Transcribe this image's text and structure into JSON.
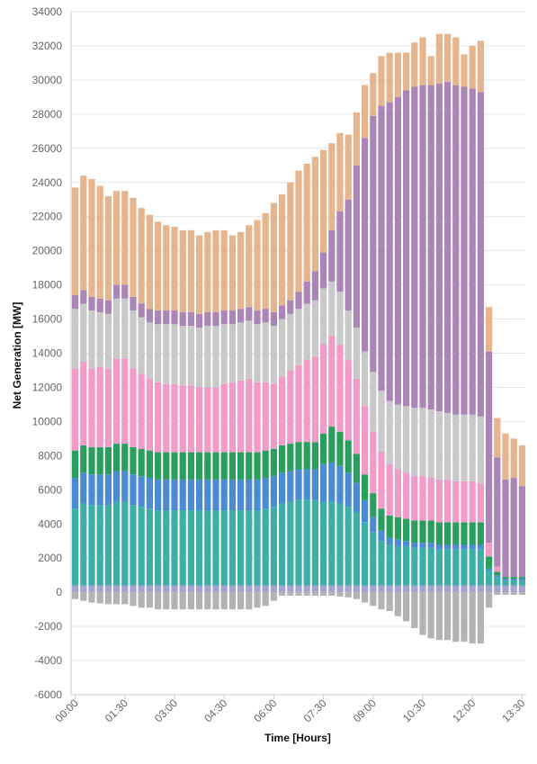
{
  "chart_data": {
    "type": "stacked_bar",
    "x_label": "Time [Hours]",
    "y_label": "Net Generation [MW]",
    "categories": [
      "00:00",
      null,
      null,
      null,
      null,
      null,
      "01:30",
      null,
      null,
      null,
      null,
      null,
      "03:00",
      null,
      null,
      null,
      null,
      null,
      "04:30",
      null,
      null,
      null,
      null,
      null,
      "06:00",
      null,
      null,
      null,
      null,
      null,
      "07:30",
      null,
      null,
      null,
      null,
      null,
      "09:00",
      null,
      null,
      null,
      null,
      null,
      "10:30",
      null,
      null,
      null,
      null,
      null,
      "12:00",
      null,
      null,
      null,
      null,
      null,
      "13:30"
    ],
    "ylim": [
      -6000,
      34000
    ],
    "yticks": [
      -6000,
      -4000,
      -2000,
      0,
      2000,
      4000,
      6000,
      8000,
      10000,
      12000,
      14000,
      16000,
      18000,
      20000,
      22000,
      24000,
      26000,
      28000,
      30000,
      32000,
      34000
    ],
    "grid": true,
    "series": [
      {
        "color": "#a6a2d4",
        "values": [
          400,
          400,
          400,
          400,
          400,
          400,
          400,
          400,
          400,
          400,
          400,
          400,
          400,
          400,
          400,
          400,
          400,
          400,
          400,
          400,
          400,
          400,
          400,
          400,
          400,
          400,
          400,
          400,
          400,
          400,
          400,
          400,
          400,
          400,
          400,
          400,
          400,
          400,
          400,
          400,
          400,
          400,
          400,
          400,
          400,
          400,
          400,
          400,
          400,
          400,
          400,
          400,
          400,
          400,
          400
        ]
      },
      {
        "color": "#3cb0a6",
        "values": [
          4500,
          4800,
          4700,
          4700,
          4700,
          4900,
          4900,
          4700,
          4600,
          4500,
          4400,
          4400,
          4400,
          4400,
          4400,
          4400,
          4400,
          4400,
          4400,
          4400,
          4400,
          4400,
          4400,
          4500,
          4600,
          4800,
          4900,
          5000,
          5000,
          5000,
          4900,
          4900,
          4800,
          4600,
          4300,
          3700,
          3100,
          2600,
          2400,
          2300,
          2300,
          2200,
          2200,
          2200,
          2100,
          2100,
          2100,
          2100,
          2100,
          2100,
          900,
          500,
          300,
          300,
          300
        ]
      },
      {
        "color": "#4a8bd4",
        "values": [
          1800,
          1800,
          1800,
          1800,
          1800,
          1800,
          1800,
          1800,
          1800,
          1800,
          1800,
          1800,
          1800,
          1800,
          1800,
          1800,
          1800,
          1800,
          1800,
          1800,
          1800,
          1800,
          1800,
          1800,
          1800,
          1800,
          1800,
          1800,
          1800,
          1800,
          2200,
          2300,
          2200,
          2000,
          1700,
          1300,
          900,
          600,
          400,
          400,
          300,
          300,
          300,
          300,
          300,
          300,
          300,
          300,
          300,
          300,
          100,
          100,
          100,
          100,
          100
        ]
      },
      {
        "color": "#2a9e5c",
        "values": [
          1600,
          1600,
          1600,
          1600,
          1600,
          1600,
          1600,
          1600,
          1600,
          1600,
          1600,
          1600,
          1600,
          1600,
          1600,
          1600,
          1600,
          1600,
          1600,
          1600,
          1600,
          1600,
          1600,
          1600,
          1600,
          1600,
          1600,
          1600,
          1600,
          1600,
          1800,
          2100,
          2000,
          1900,
          1700,
          1500,
          1400,
          1300,
          1300,
          1300,
          1300,
          1300,
          1300,
          1300,
          1300,
          1300,
          1300,
          1300,
          1300,
          1300,
          700,
          200,
          100,
          100,
          100
        ]
      },
      {
        "color": "#f29ac8",
        "values": [
          4800,
          4900,
          4600,
          4700,
          4600,
          5000,
          5000,
          4600,
          4400,
          4200,
          4100,
          4000,
          4000,
          3900,
          3900,
          3800,
          3800,
          3800,
          4000,
          4100,
          4200,
          4300,
          4100,
          4000,
          3800,
          4000,
          4300,
          4500,
          4800,
          5000,
          5200,
          5300,
          5100,
          4700,
          4400,
          4000,
          3600,
          3300,
          3000,
          2800,
          2700,
          2600,
          2600,
          2500,
          2500,
          2500,
          2400,
          2400,
          2400,
          2300,
          800,
          300,
          0,
          0,
          0
        ]
      },
      {
        "color": "#c9c9c9",
        "values": [
          3500,
          3400,
          3400,
          3200,
          3200,
          3500,
          3500,
          3400,
          3300,
          3300,
          3400,
          3500,
          3500,
          3500,
          3500,
          3500,
          3600,
          3600,
          3500,
          3400,
          3400,
          3400,
          3400,
          3500,
          3400,
          3400,
          3300,
          3300,
          3300,
          3300,
          3300,
          3200,
          3100,
          2900,
          3000,
          3200,
          3500,
          3600,
          3700,
          3800,
          3900,
          4000,
          4000,
          4000,
          4000,
          3900,
          3900,
          3900,
          3900,
          3900,
          0,
          0,
          0,
          0,
          0
        ]
      },
      {
        "color": "#ab84b8",
        "values": [
          800,
          800,
          800,
          800,
          800,
          800,
          800,
          800,
          800,
          800,
          800,
          800,
          800,
          800,
          800,
          800,
          800,
          800,
          800,
          800,
          800,
          800,
          800,
          800,
          800,
          800,
          800,
          1000,
          1300,
          1700,
          2100,
          3000,
          4700,
          6500,
          9500,
          12500,
          15000,
          16700,
          17500,
          18000,
          18500,
          18800,
          18900,
          19000,
          19200,
          19400,
          19300,
          19200,
          19100,
          19000,
          11200,
          6400,
          5700,
          5800,
          5300
        ]
      },
      {
        "color": "#e6b58e",
        "values": [
          6300,
          6700,
          6900,
          6600,
          6100,
          5500,
          5500,
          5800,
          5600,
          5500,
          5200,
          5000,
          4900,
          4800,
          4800,
          4600,
          4700,
          4800,
          4700,
          4400,
          4500,
          4800,
          5300,
          5600,
          6400,
          6500,
          6900,
          7100,
          6900,
          6700,
          6000,
          5100,
          4600,
          3800,
          3100,
          3100,
          2500,
          2900,
          2900,
          2600,
          2200,
          2600,
          2800,
          1700,
          2900,
          2800,
          2800,
          1900,
          2500,
          3000,
          2600,
          2300,
          2700,
          2300,
          2400
        ]
      },
      {
        "color": "#b3b3b3",
        "values": [
          -400,
          -500,
          -600,
          -650,
          -700,
          -700,
          -700,
          -800,
          -900,
          -900,
          -1000,
          -1000,
          -1000,
          -1000,
          -1000,
          -1000,
          -1000,
          -1000,
          -1000,
          -1000,
          -1000,
          -1000,
          -900,
          -800,
          -500,
          -200,
          -200,
          -200,
          -200,
          -200,
          -200,
          -200,
          -250,
          -300,
          -400,
          -600,
          -800,
          -1000,
          -1100,
          -1400,
          -1700,
          -2100,
          -2500,
          -2700,
          -2800,
          -2800,
          -2900,
          -2900,
          -3000,
          -3000,
          -900,
          -150,
          -150,
          -150,
          -150
        ]
      }
    ]
  }
}
